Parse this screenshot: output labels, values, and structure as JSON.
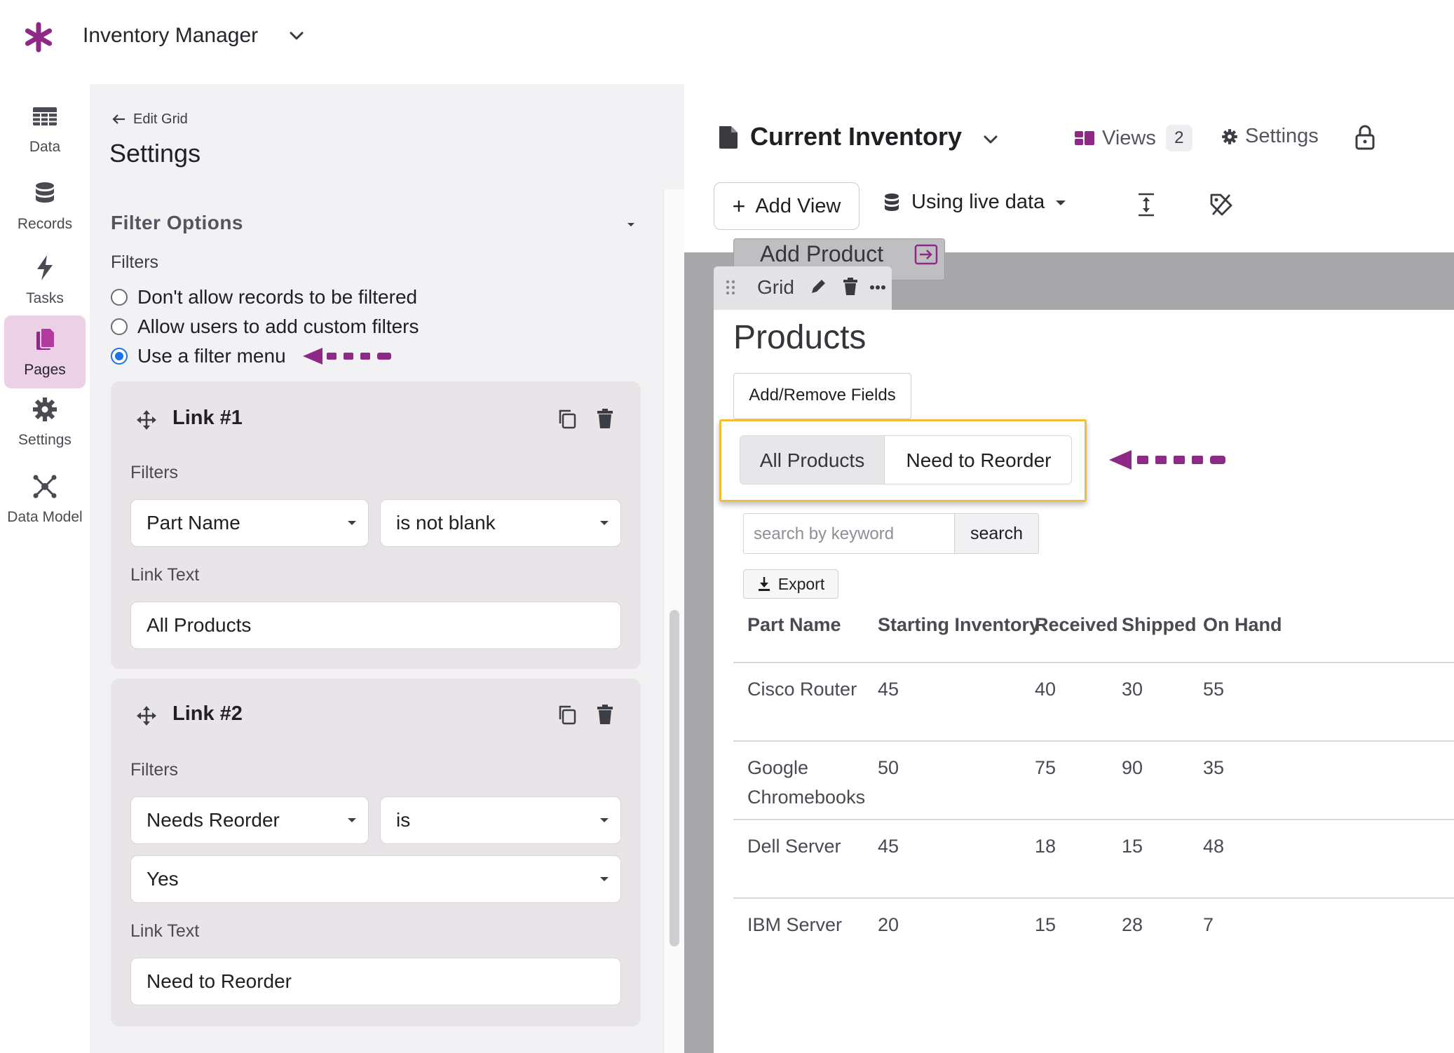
{
  "app": {
    "title": "Inventory Manager",
    "accent": "#8e2a85"
  },
  "nav": {
    "items": [
      {
        "label": "Data",
        "icon": "table-icon"
      },
      {
        "label": "Records",
        "icon": "database-icon"
      },
      {
        "label": "Tasks",
        "icon": "lightning-icon"
      },
      {
        "label": "Pages",
        "icon": "pages-icon",
        "active": true
      },
      {
        "label": "Settings",
        "icon": "gear-icon"
      },
      {
        "label": "Data Model",
        "icon": "network-icon"
      }
    ]
  },
  "panel": {
    "back_label": "Edit Grid",
    "title": "Settings",
    "section": "Filter Options",
    "filters_label": "Filters",
    "radio_options": [
      {
        "label": "Don't allow records to be filtered",
        "checked": false
      },
      {
        "label": "Allow users to add custom filters",
        "checked": false
      },
      {
        "label": "Use a filter menu",
        "checked": true
      }
    ],
    "links": [
      {
        "title": "Link #1",
        "filters_label": "Filters",
        "field": "Part Name",
        "operator": "is not blank",
        "value": null,
        "link_text_label": "Link Text",
        "link_text": "All Products"
      },
      {
        "title": "Link #2",
        "filters_label": "Filters",
        "field": "Needs Reorder",
        "operator": "is",
        "value": "Yes",
        "link_text_label": "Link Text",
        "link_text": "Need to Reorder"
      }
    ]
  },
  "view": {
    "title": "Current Inventory",
    "views_label": "Views",
    "views_count": "2",
    "settings_label": "Settings",
    "add_view_label": "Add View",
    "live_data_label": "Using live data",
    "prev_block_label": "Add Product",
    "grid_tab_label": "Grid"
  },
  "products": {
    "title": "Products",
    "add_fields_label": "Add/Remove Fields",
    "filter_menu": [
      "All Products",
      "Need to Reorder"
    ],
    "search_placeholder": "search by keyword",
    "search_label": "search",
    "export_label": "Export",
    "columns": [
      "Part Name",
      "Starting Inventory",
      "Received",
      "Shipped",
      "On Hand"
    ],
    "rows": [
      [
        "Cisco Router",
        "45",
        "40",
        "30",
        "55"
      ],
      [
        "Google Chromebooks",
        "50",
        "75",
        "90",
        "35"
      ],
      [
        "Dell Server",
        "45",
        "18",
        "15",
        "48"
      ],
      [
        "IBM Server",
        "20",
        "15",
        "28",
        "7"
      ]
    ]
  },
  "colors": {
    "annotation_arrow": "#8e2a85",
    "highlight_border": "#f2bd3a",
    "active_nav": "#ecd0e6",
    "radio_selected": "#1a73e8"
  }
}
